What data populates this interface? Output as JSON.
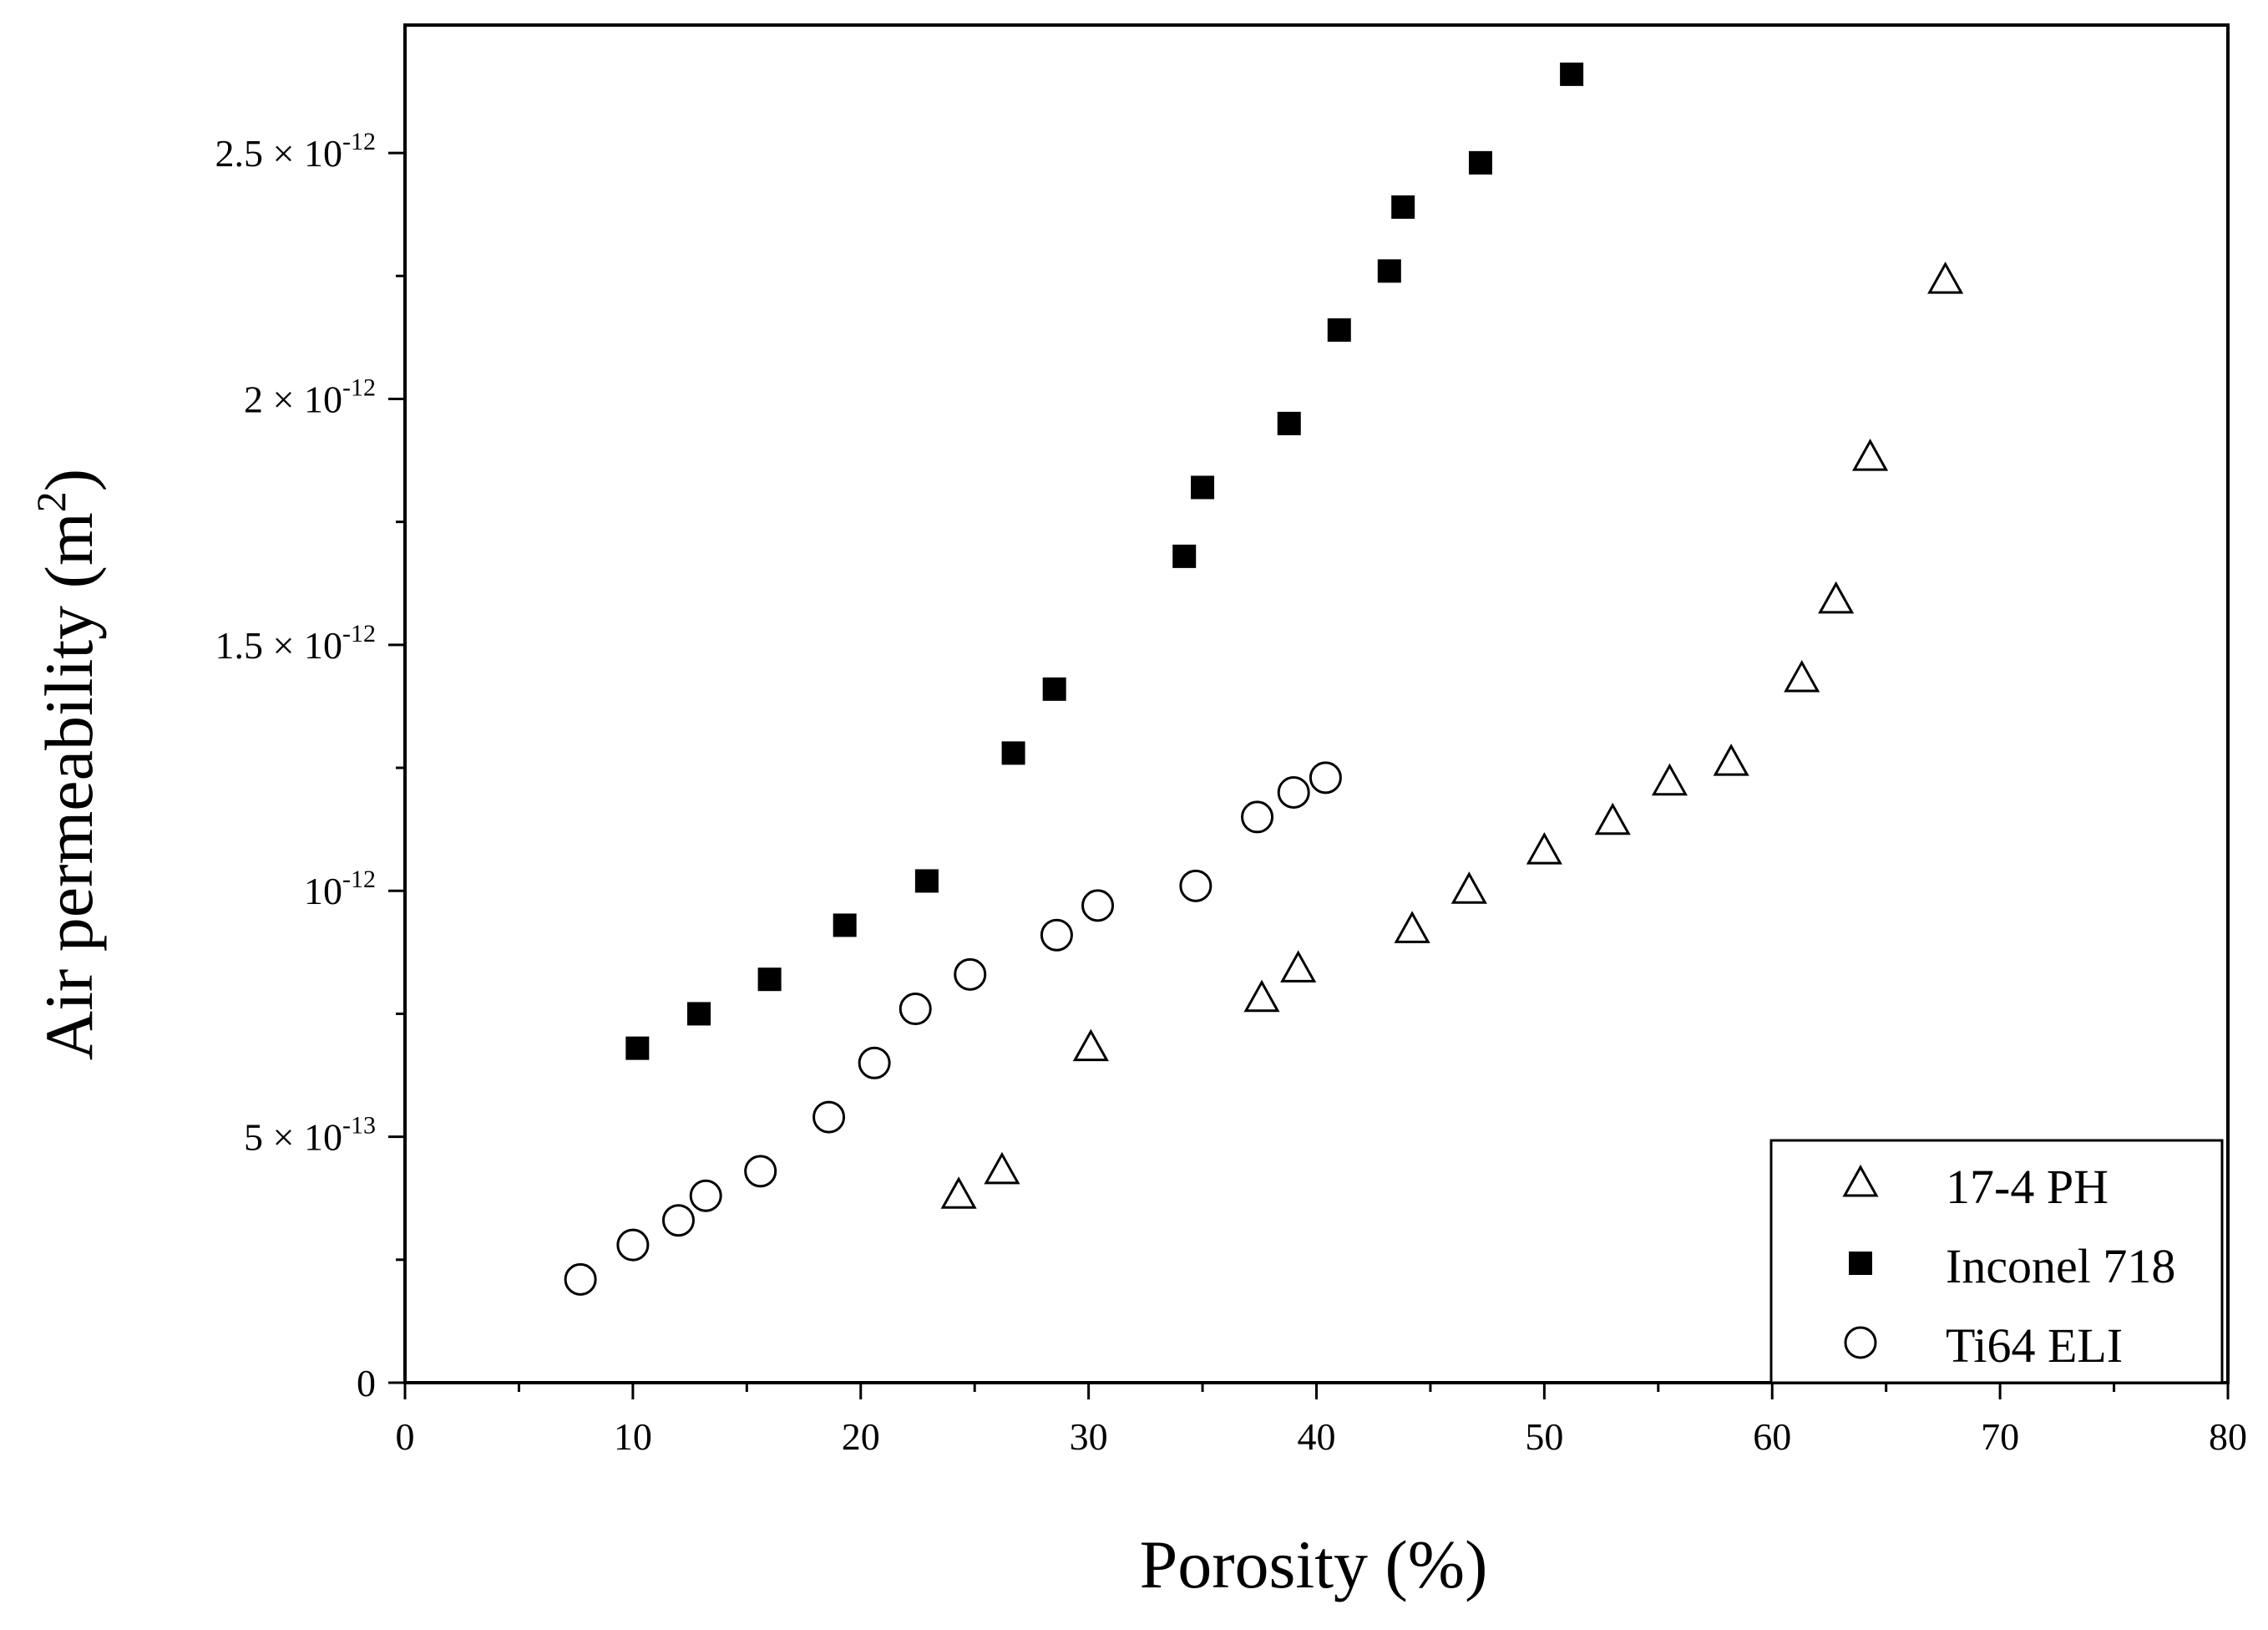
{
  "chart_data": {
    "type": "scatter",
    "xlabel": "Porosity (%)",
    "ylabel": "Air permeability (m²)",
    "xlim": [
      0,
      80
    ],
    "ylim": [
      0,
      2.76e-12
    ],
    "x_ticks": [
      0,
      10,
      20,
      30,
      40,
      50,
      60,
      70,
      80
    ],
    "y_ticks": [
      {
        "value": 0,
        "mant": "0",
        "exp": ""
      },
      {
        "value": 5e-13,
        "mant": "5 × 10",
        "exp": "-13"
      },
      {
        "value": 1e-12,
        "mant": "10",
        "exp": "-12"
      },
      {
        "value": 1.5e-12,
        "mant": "1.5 × 10",
        "exp": "-12"
      },
      {
        "value": 2e-12,
        "mant": "2 × 10",
        "exp": "-12"
      },
      {
        "value": 2.5e-12,
        "mant": "2.5 × 10",
        "exp": "-12"
      }
    ],
    "grid": false,
    "legend_position": "bottom-right",
    "series": [
      {
        "name": "17-4 PH",
        "marker": "open-triangle",
        "x": [
          24.3,
          26.2,
          30.1,
          37.6,
          39.2,
          44.2,
          46.7,
          50.0,
          53.0,
          55.5,
          58.2,
          61.3,
          62.8,
          64.3,
          67.6
        ],
        "y": [
          3.8e-13,
          4.3e-13,
          6.8e-13,
          7.8e-13,
          8.4e-13,
          9.2e-13,
          1e-12,
          1.08e-12,
          1.14e-12,
          1.22e-12,
          1.26e-12,
          1.43e-12,
          1.59e-12,
          1.88e-12,
          2.24e-12
        ]
      },
      {
        "name": "Inconel 718",
        "marker": "filled-square",
        "x": [
          10.2,
          12.9,
          16.0,
          19.3,
          22.9,
          26.7,
          28.5,
          34.2,
          35.0,
          38.8,
          41.0,
          43.2,
          43.8,
          47.2,
          51.2
        ],
        "y": [
          6.8e-13,
          7.5e-13,
          8.2e-13,
          9.3e-13,
          1.02e-12,
          1.28e-12,
          1.41e-12,
          1.68e-12,
          1.82e-12,
          1.95e-12,
          2.14e-12,
          2.26e-12,
          2.39e-12,
          2.48e-12,
          2.66e-12
        ]
      },
      {
        "name": "Ti64 ELI",
        "marker": "open-circle",
        "x": [
          7.7,
          10.0,
          12.0,
          13.2,
          15.6,
          18.6,
          20.6,
          22.4,
          24.8,
          28.6,
          30.4,
          34.7,
          37.4,
          39.0,
          40.4
        ],
        "y": [
          2.1e-13,
          2.8e-13,
          3.3e-13,
          3.8e-13,
          4.3e-13,
          5.4e-13,
          6.5e-13,
          7.6e-13,
          8.3e-13,
          9.1e-13,
          9.7e-13,
          1.01e-12,
          1.15e-12,
          1.2e-12,
          1.23e-12
        ]
      }
    ]
  }
}
